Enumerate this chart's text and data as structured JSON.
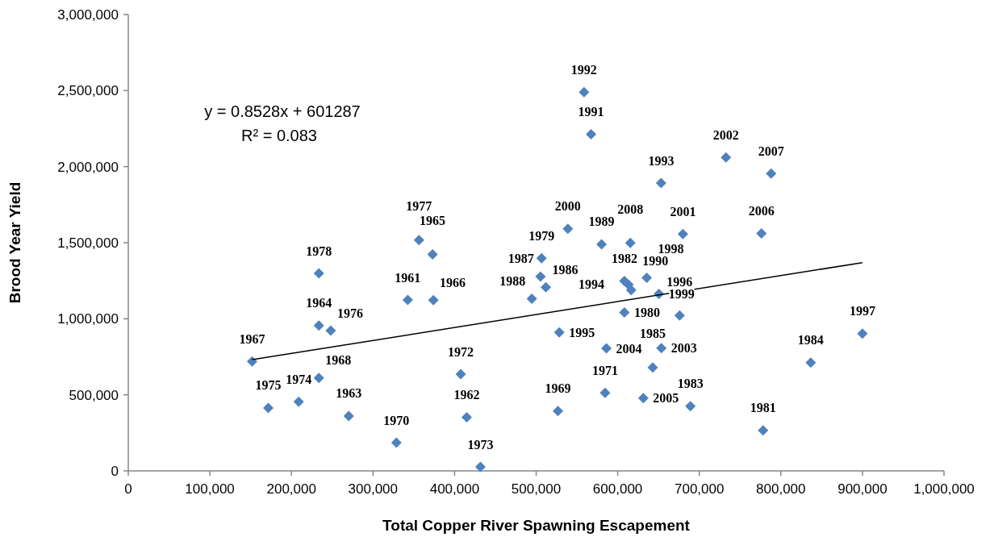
{
  "chart_data": {
    "type": "scatter",
    "xlabel": "Total Copper River Spawning Escapement",
    "ylabel": "Brood Year Yield",
    "annotations": [
      "y = 0.8528x + 601287",
      "R² = 0.083",
      {
        "text": "1961",
        "x": 342600,
        "y": 1124000
      },
      {
        "text": "1962",
        "x": 414900,
        "y": 352000
      },
      {
        "text": "1963",
        "x": 270300,
        "y": 361000
      },
      {
        "text": "1964",
        "x": 233700,
        "y": 956000
      },
      {
        "text": "1965",
        "x": 373000,
        "y": 1423000
      },
      {
        "text": "1966",
        "x": 374000,
        "y": 1122000
      },
      {
        "text": "1967",
        "x": 151800,
        "y": 720000
      },
      {
        "text": "1968",
        "x": 233700,
        "y": 611000
      },
      {
        "text": "1969",
        "x": 526700,
        "y": 393000
      },
      {
        "text": "1970",
        "x": 328700,
        "y": 186000
      },
      {
        "text": "1971",
        "x": 584500,
        "y": 513000
      },
      {
        "text": "1972",
        "x": 407600,
        "y": 636000
      },
      {
        "text": "1973",
        "x": 431700,
        "y": 27000
      },
      {
        "text": "1974",
        "x": 208900,
        "y": 455000
      },
      {
        "text": "1975",
        "x": 171600,
        "y": 414000
      },
      {
        "text": "1976",
        "x": 248200,
        "y": 922000
      },
      {
        "text": "1977",
        "x": 356400,
        "y": 1517000
      },
      {
        "text": "1978",
        "x": 233700,
        "y": 1299000
      },
      {
        "text": "1979",
        "x": 506600,
        "y": 1398000
      },
      {
        "text": "1980",
        "x": 608200,
        "y": 1042000
      },
      {
        "text": "1981",
        "x": 778200,
        "y": 266000
      },
      {
        "text": "1982",
        "x": 608200,
        "y": 1248000
      },
      {
        "text": "1983",
        "x": 689100,
        "y": 425000
      },
      {
        "text": "1984",
        "x": 836600,
        "y": 712000
      },
      {
        "text": "1985",
        "x": 642900,
        "y": 680000
      },
      {
        "text": "1986",
        "x": 511900,
        "y": 1207000
      },
      {
        "text": "1987",
        "x": 505300,
        "y": 1278000
      },
      {
        "text": "1988",
        "x": 494700,
        "y": 1131000
      },
      {
        "text": "1989",
        "x": 580200,
        "y": 1490000
      },
      {
        "text": "1990",
        "x": 616500,
        "y": 1189000
      },
      {
        "text": "1991",
        "x": 567300,
        "y": 2213000
      },
      {
        "text": "1992",
        "x": 558700,
        "y": 2490000
      },
      {
        "text": "1993",
        "x": 653200,
        "y": 1892000
      },
      {
        "text": "1994",
        "x": 613200,
        "y": 1225000
      },
      {
        "text": "1995",
        "x": 528400,
        "y": 910000
      },
      {
        "text": "1996",
        "x": 675900,
        "y": 1021000
      },
      {
        "text": "1997",
        "x": 900000,
        "y": 903000
      },
      {
        "text": "1998",
        "x": 635600,
        "y": 1269000
      },
      {
        "text": "1999",
        "x": 650500,
        "y": 1163000
      },
      {
        "text": "2000",
        "x": 538900,
        "y": 1591000
      },
      {
        "text": "2001",
        "x": 679900,
        "y": 1557000
      },
      {
        "text": "2002",
        "x": 732700,
        "y": 2060000
      },
      {
        "text": "2003",
        "x": 653500,
        "y": 807000
      },
      {
        "text": "2004",
        "x": 586100,
        "y": 805000
      },
      {
        "text": "2005",
        "x": 631400,
        "y": 478000
      },
      {
        "text": "2006",
        "x": 776200,
        "y": 1561000
      },
      {
        "text": "2007",
        "x": 788100,
        "y": 1954000
      },
      {
        "text": "2008",
        "x": 615500,
        "y": 1499000
      }
    ],
    "xlim": [
      0,
      1000000
    ],
    "xticks": [
      {
        "value": 0,
        "label": "0"
      },
      {
        "value": 100000,
        "label": "100,000"
      },
      {
        "value": 200000,
        "label": "200,000"
      },
      {
        "value": 300000,
        "label": "300,000"
      },
      {
        "value": 400000,
        "label": "400,000"
      },
      {
        "value": 500000,
        "label": "500,000"
      },
      {
        "value": 600000,
        "label": "600,000"
      },
      {
        "value": 700000,
        "label": "700,000"
      },
      {
        "value": 800000,
        "label": "800,000"
      },
      {
        "value": 900000,
        "label": "900,000"
      },
      {
        "value": 1000000,
        "label": "1,000,000"
      }
    ],
    "ylim": [
      0,
      3000000
    ],
    "yticks": [
      {
        "value": 0,
        "label": "0"
      },
      {
        "value": 500000,
        "label": "500,000"
      },
      {
        "value": 1000000,
        "label": "1,000,000"
      },
      {
        "value": 1500000,
        "label": "1,500,000"
      },
      {
        "value": 2000000,
        "label": "2,000,000"
      },
      {
        "value": 2500000,
        "label": "2,500,000"
      },
      {
        "value": 3000000,
        "label": "3,000,000"
      }
    ],
    "grid": false,
    "series": [
      {
        "color": "#4f81bd",
        "marker": "diamond",
        "x": [
          342600,
          414900,
          270300,
          233700,
          373000,
          374000,
          151800,
          233700,
          526700,
          328700,
          584500,
          407600,
          431700,
          208900,
          171600,
          248200,
          356400,
          233700,
          506600,
          608200,
          778200,
          608200,
          689100,
          836600,
          642900,
          511900,
          505300,
          494700,
          580200,
          616500,
          567300,
          558700,
          653200,
          613200,
          528400,
          675900,
          900000,
          635600,
          650500,
          538900,
          679900,
          732700,
          653500,
          586100,
          631400,
          776200,
          788100,
          615500
        ],
        "values": [
          1124000,
          352000,
          361000,
          956000,
          1423000,
          1122000,
          720000,
          611000,
          393000,
          186000,
          513000,
          636000,
          27000,
          455000,
          414000,
          922000,
          1517000,
          1299000,
          1398000,
          1042000,
          266000,
          1248000,
          425000,
          712000,
          680000,
          1207000,
          1278000,
          1131000,
          1490000,
          1189000,
          2213000,
          2490000,
          1892000,
          1225000,
          910000,
          1021000,
          903000,
          1269000,
          1163000,
          1591000,
          1557000,
          2060000,
          807000,
          805000,
          478000,
          1561000,
          1954000,
          1499000
        ]
      },
      {
        "type": "line",
        "color": "#000000",
        "marker": "none",
        "line_style": "solid",
        "x": [
          151800,
          900000
        ],
        "values": [
          731000,
          1369000
        ]
      }
    ]
  }
}
